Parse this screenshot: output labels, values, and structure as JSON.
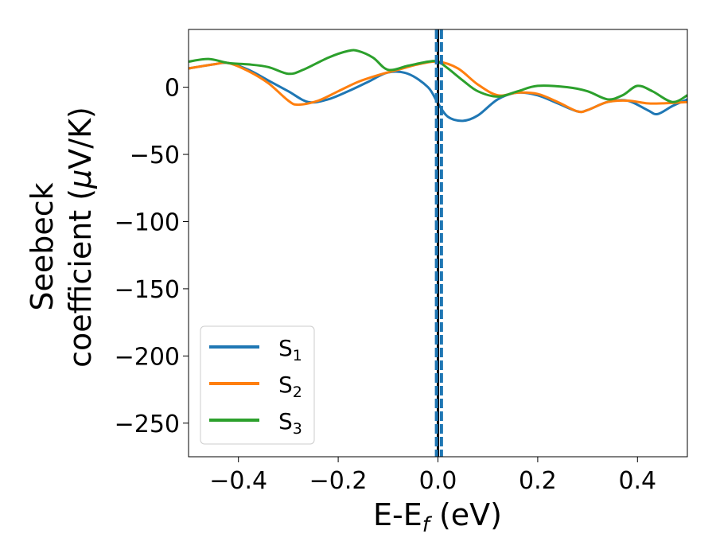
{
  "chart_data": {
    "type": "line",
    "xlabel": "E-E",
    "xlabel_sub": "f",
    "xlabel_unit": " (eV)",
    "ylabel_line1": "Seebeck",
    "ylabel_line2_prefix": "coefficient  (",
    "ylabel_mu": "μ",
    "ylabel_line2_suffix": "V/K)",
    "xlim": [
      -0.5,
      0.5
    ],
    "ylim": [
      -275,
      43
    ],
    "x_ticks": [
      -0.4,
      -0.2,
      0.0,
      0.2,
      0.4
    ],
    "x_tick_labels": [
      "−0.4",
      "−0.2",
      "0.0",
      "0.2",
      "0.4"
    ],
    "y_ticks": [
      0,
      -50,
      -100,
      -150,
      -200,
      -250
    ],
    "y_tick_labels": [
      "0",
      "−50",
      "−100",
      "−150",
      "−200",
      "−250"
    ],
    "grid": false,
    "legend_position": "lower-left",
    "vertical_lines": [
      {
        "x": 0.0,
        "color": "#000000",
        "style": "solid"
      },
      {
        "x": -0.003,
        "color": "#1f77b4",
        "style": "dashed"
      },
      {
        "x": 0.007,
        "color": "#1f77b4",
        "style": "dashed"
      }
    ],
    "series": [
      {
        "name": "S",
        "sub": "1",
        "color": "#1f77b4",
        "x": [
          -0.5,
          -0.45,
          -0.42,
          -0.38,
          -0.34,
          -0.3,
          -0.26,
          -0.22,
          -0.18,
          -0.14,
          -0.1,
          -0.06,
          -0.02,
          0.0,
          0.02,
          0.05,
          0.08,
          0.12,
          0.16,
          0.2,
          0.24,
          0.28,
          0.3,
          0.34,
          0.38,
          0.42,
          0.44,
          0.47,
          0.5
        ],
        "values": [
          14,
          17,
          18,
          13,
          5,
          -3,
          -11,
          -9,
          -3,
          4,
          11,
          10,
          0,
          -12,
          -22,
          -25,
          -21,
          -9,
          -4,
          -6,
          -12,
          -18,
          -17,
          -11,
          -10,
          -17,
          -20,
          -14,
          -9
        ]
      },
      {
        "name": "S",
        "sub": "2",
        "color": "#ff7f0e",
        "x": [
          -0.5,
          -0.45,
          -0.42,
          -0.38,
          -0.34,
          -0.3,
          -0.28,
          -0.24,
          -0.2,
          -0.16,
          -0.12,
          -0.08,
          -0.04,
          0.0,
          0.04,
          0.08,
          0.12,
          0.16,
          0.2,
          0.24,
          0.28,
          0.3,
          0.34,
          0.38,
          0.42,
          0.45,
          0.5
        ],
        "values": [
          14,
          17,
          18,
          12,
          3,
          -10,
          -13,
          -10,
          -3,
          4,
          9,
          13,
          17,
          19,
          14,
          2,
          -6,
          -4,
          -5,
          -11,
          -18,
          -17,
          -11,
          -10,
          -12,
          -12,
          -11
        ]
      },
      {
        "name": "S",
        "sub": "3",
        "color": "#2ca02c",
        "x": [
          -0.5,
          -0.46,
          -0.42,
          -0.38,
          -0.34,
          -0.3,
          -0.27,
          -0.22,
          -0.18,
          -0.16,
          -0.13,
          -0.1,
          -0.06,
          -0.02,
          0.0,
          0.02,
          0.05,
          0.08,
          0.12,
          0.16,
          0.2,
          0.26,
          0.3,
          0.34,
          0.37,
          0.4,
          0.43,
          0.47,
          0.5
        ],
        "values": [
          19,
          21,
          18,
          17,
          15,
          10,
          13,
          22,
          27,
          27,
          22,
          13,
          16,
          19,
          19,
          14,
          5,
          -3,
          -7,
          -3,
          1,
          0,
          -3,
          -9,
          -6,
          1,
          -3,
          -11,
          -6
        ]
      }
    ]
  }
}
